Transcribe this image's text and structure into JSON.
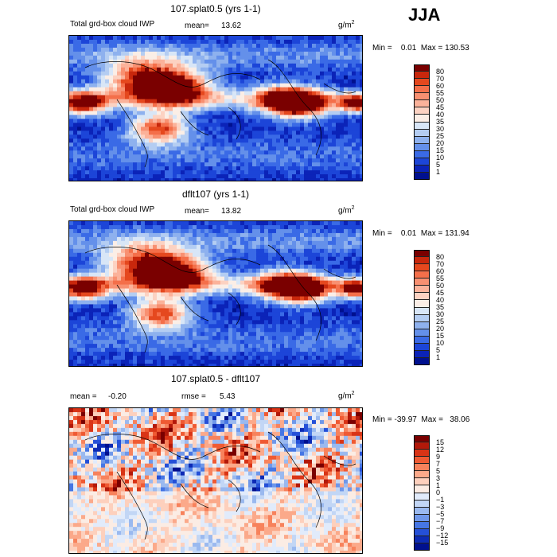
{
  "season": "JJA",
  "panels": [
    {
      "title": "107.splat0.5 (yrs 1-1)",
      "field": "Total grd-box cloud IWP",
      "mean_label": "mean=",
      "mean_value": "13.62",
      "unit": "g/m",
      "unit_exp": "2",
      "minmax": "Min =    0.01  Max = 130.53",
      "kind": "abs"
    },
    {
      "title": "dflt107 (yrs 1-1)",
      "field": "Total grd-box cloud IWP",
      "mean_label": "mean=",
      "mean_value": "13.82",
      "unit": "g/m",
      "unit_exp": "2",
      "minmax": "Min =    0.01  Max = 131.94",
      "kind": "abs"
    },
    {
      "title": "107.splat0.5 - dflt107",
      "field": "",
      "mean_label": "mean =",
      "mean_value": "-0.20",
      "rmse_label": "rmse =",
      "rmse_value": "5.43",
      "unit": "g/m",
      "unit_exp": "2",
      "minmax": "Min = -39.97  Max =   38.06",
      "kind": "diff"
    }
  ],
  "colorbar_abs": {
    "levels": [
      "80",
      "70",
      "60",
      "55",
      "50",
      "45",
      "40",
      "35",
      "30",
      "25",
      "20",
      "15",
      "10",
      "5",
      "1"
    ],
    "colors": [
      "#7a0000",
      "#c8270c",
      "#e5481e",
      "#f46f4a",
      "#f89071",
      "#fbb29a",
      "#fcd2c2",
      "#fbeee6",
      "#d8e6f7",
      "#b4cdf2",
      "#8eb1ee",
      "#6490ea",
      "#3a6ae6",
      "#1c45d8",
      "#0b23b8",
      "#00108f"
    ]
  },
  "colorbar_diff": {
    "levels": [
      "15",
      "12",
      "9",
      "7",
      "5",
      "3",
      "1",
      "0",
      "-1",
      "-3",
      "-5",
      "-7",
      "-9",
      "-12",
      "-15"
    ],
    "colors": [
      "#7a0000",
      "#b3190a",
      "#d93416",
      "#ef5a33",
      "#f7825c",
      "#fba98a",
      "#fdd0bd",
      "#fbece4",
      "#e1ebfb",
      "#c2d6f5",
      "#9ab9ef",
      "#6f97e9",
      "#4676e4",
      "#2550d8",
      "#0d2bb5",
      "#00108f"
    ]
  }
}
